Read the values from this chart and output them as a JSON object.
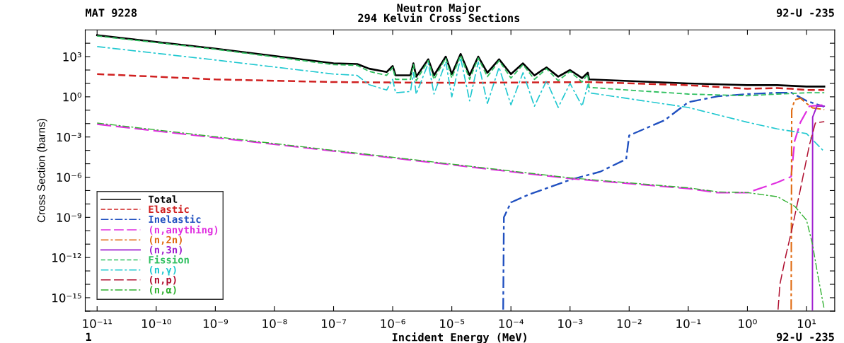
{
  "chart_data": {
    "type": "line",
    "title": "Neutron Major",
    "subtitle": "294 Kelvin Cross Sections",
    "xlabel": "Incident Energy (MeV)",
    "ylabel": "Cross Section (barns)",
    "annotations": [
      "MAT 9228",
      "92-U -235",
      "1",
      "92-U -235"
    ],
    "log": "xy",
    "grid": false,
    "legend": "bottom left",
    "marker": "none",
    "xlim": [
      6.3e-12,
      30
    ],
    "ylim": [
      1e-16,
      100000.0
    ],
    "xticks": [
      {
        "value": 1e-11,
        "label": "10⁻¹¹"
      },
      {
        "value": 1e-10,
        "label": "10⁻¹⁰"
      },
      {
        "value": 1e-09,
        "label": "10⁻⁹"
      },
      {
        "value": 1e-08,
        "label": "10⁻⁸"
      },
      {
        "value": 1e-07,
        "label": "10⁻⁷"
      },
      {
        "value": 1e-06,
        "label": "10⁻⁶"
      },
      {
        "value": 1e-05,
        "label": "10⁻⁵"
      },
      {
        "value": 0.0001,
        "label": "10⁻⁴"
      },
      {
        "value": 0.001,
        "label": "10⁻³"
      },
      {
        "value": 0.01,
        "label": "10⁻²"
      },
      {
        "value": 0.1,
        "label": "10⁻¹"
      },
      {
        "value": 1,
        "label": "10⁰"
      },
      {
        "value": 10,
        "label": "10¹"
      }
    ],
    "yticks": [
      {
        "value": 1e-16,
        "label": null
      },
      {
        "value": 1e-15,
        "label": "10⁻¹⁵"
      },
      {
        "value": 1e-14,
        "label": null
      },
      {
        "value": 1e-13,
        "label": null
      },
      {
        "value": 1e-12,
        "label": "10⁻¹²"
      },
      {
        "value": 1e-11,
        "label": null
      },
      {
        "value": 1e-10,
        "label": null
      },
      {
        "value": 1e-09,
        "label": "10⁻⁹"
      },
      {
        "value": 1e-08,
        "label": null
      },
      {
        "value": 1e-07,
        "label": null
      },
      {
        "value": 1e-06,
        "label": "10⁻⁶"
      },
      {
        "value": 1e-05,
        "label": null
      },
      {
        "value": 0.0001,
        "label": null
      },
      {
        "value": 0.001,
        "label": "10⁻³"
      },
      {
        "value": 0.01,
        "label": null
      },
      {
        "value": 0.1,
        "label": null
      },
      {
        "value": 1,
        "label": "10⁰"
      },
      {
        "value": 10,
        "label": null
      },
      {
        "value": 100,
        "label": null
      },
      {
        "value": 1000,
        "label": "10³"
      },
      {
        "value": 10000.0,
        "label": null
      }
    ],
    "x": [
      1e-11,
      1e-09,
      1e-07,
      2.5e-07,
      4e-07,
      7.9e-07,
      1e-06,
      1.12e-06,
      2e-06,
      2.24e-06,
      2.5e-06,
      4e-06,
      5e-06,
      7.9e-06,
      1e-05,
      1.41e-05,
      2e-05,
      2.8e-05,
      4e-05,
      6.3e-05,
      0.0001,
      0.00016,
      0.00025,
      0.0004,
      0.00063,
      0.001,
      0.0016,
      0.002,
      0.0021,
      0.1,
      1,
      3.2,
      10,
      20
    ],
    "series": [
      {
        "name": "Total",
        "color": "#000000",
        "line_style": "solid",
        "values": [
          39800.0,
          3981,
          316,
          282,
          126,
          71,
          200,
          40,
          40,
          316,
          32,
          631,
          40,
          1000,
          50,
          1585,
          40,
          1000,
          63,
          631,
          50,
          316,
          40,
          158,
          32,
          100,
          25,
          63,
          20,
          10,
          7.4,
          7.4,
          5.8,
          5.8
        ]
      },
      {
        "name": "Elastic",
        "color": "#d02020",
        "line_style": "dashed",
        "x": [
          1e-11,
          1e-09,
          1e-07,
          1e-05,
          0.0021,
          0.1,
          1,
          3.2,
          5.6,
          10,
          20
        ],
        "values": [
          50,
          20,
          12.6,
          11,
          12.6,
          7.4,
          4,
          4.5,
          4,
          3.2,
          3.2
        ]
      },
      {
        "name": "Inelastic",
        "color": "#2050c0",
        "line_style": "dashdot",
        "x": [
          7.4e-05,
          7.6e-05,
          0.0001,
          0.0002,
          0.001,
          0.0032,
          0.0089,
          0.01,
          0.04,
          0.1,
          0.32,
          1,
          3.2,
          5.6,
          10,
          20
        ],
        "values": [
          1.3e-16,
          1e-09,
          1.3e-08,
          5e-08,
          6.3e-07,
          2.5e-06,
          2.2e-05,
          0.0013,
          0.018,
          0.4,
          1.1,
          1.6,
          2.0,
          2.0,
          0.5,
          0.18
        ]
      },
      {
        "name": "(n,anything)",
        "color": "#e030e0",
        "line_style": "longdash",
        "x": [
          1e-11,
          1e-07,
          0.001,
          0.1,
          0.32,
          1,
          3.2,
          5.5,
          6.3,
          7.9,
          11.2,
          20
        ],
        "values": [
          0.0089,
          8.9e-05,
          7.9e-07,
          1.4e-07,
          6.9e-08,
          6.9e-08,
          4e-07,
          1.1e-06,
          0.0005,
          0.0126,
          0.2,
          0.25
        ]
      },
      {
        "name": "(n,2n)",
        "color": "#e06a10",
        "line_style": "dashdot",
        "x": [
          5.5,
          5.62,
          6.3,
          7.9,
          10,
          12.6,
          20
        ],
        "values": [
          1.3e-16,
          0.1,
          0.6,
          0.8,
          0.32,
          0.15,
          0.11
        ]
      },
      {
        "name": "(n,3n)",
        "color": "#a020d0",
        "line_style": "solid",
        "x": [
          12.6,
          12.7,
          15,
          20
        ],
        "values": [
          1.3e-16,
          0.03,
          0.2,
          0.2
        ]
      },
      {
        "name": "Fission",
        "color": "#30c060",
        "line_style": "dashed",
        "values": [
          35000.0,
          3548,
          251,
          224,
          79,
          40,
          158,
          20,
          20,
          251,
          16,
          501,
          20,
          794,
          25,
          1259,
          20,
          794,
          32,
          501,
          25,
          251,
          20,
          126,
          16,
          79,
          12.6,
          50,
          5,
          1.6,
          1.2,
          1.6,
          2.0,
          2.0
        ]
      },
      {
        "name": "(n,γ)",
        "color": "#20c8d0",
        "line_style": "dashdot",
        "values": [
          5623,
          562,
          50,
          40,
          8,
          3.2,
          20,
          2,
          2.5,
          63,
          1.6,
          316,
          1.6,
          398,
          1,
          794,
          0.5,
          398,
          0.32,
          158,
          0.25,
          63,
          0.2,
          16,
          0.16,
          10,
          0.2,
          8,
          2,
          0.16,
          0.0126,
          0.004,
          0.0018,
          8e-05
        ]
      },
      {
        "name": "(n,p)",
        "color": "#b01030",
        "line_style": "longdash",
        "x": [
          3.3,
          3.55,
          4.5,
          5.6,
          7.9,
          11.2,
          14.1,
          20
        ],
        "values": [
          1.3e-16,
          1e-14,
          1.6e-12,
          1e-10,
          1.3e-07,
          0.00025,
          0.011,
          0.014
        ]
      },
      {
        "name": "(n,α)",
        "color": "#30b030",
        "line_style": "dashdot",
        "x": [
          1e-11,
          1e-07,
          0.001,
          0.1,
          0.32,
          1,
          3.2,
          6.3,
          10,
          12.6,
          15.8,
          20
        ],
        "values": [
          0.011,
          0.0001,
          8.9e-07,
          1.6e-07,
          8e-08,
          7e-08,
          3.5e-08,
          6.8e-09,
          6.3e-10,
          1e-11,
          3.2e-14,
          1.3e-16
        ]
      }
    ]
  }
}
